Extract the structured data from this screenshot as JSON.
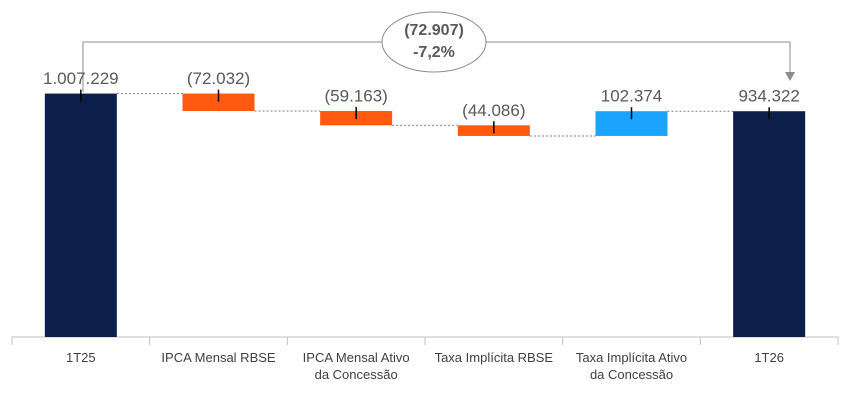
{
  "chart_data": {
    "type": "waterfall",
    "categories": [
      "1T25",
      "IPCA Mensal RBSE",
      "IPCA Mensal Ativo da Concessão",
      "Taxa Implícita RBSE",
      "Taxa Implícita Ativo da Concessão",
      "1T26"
    ],
    "values": [
      1007229,
      -72032,
      -59163,
      -44086,
      102374,
      934322
    ],
    "value_labels": [
      "1.007.229",
      "(72.032)",
      "(59.163)",
      "(44.086)",
      "102.374",
      "934.322"
    ],
    "is_total": [
      true,
      false,
      false,
      false,
      false,
      true
    ],
    "colors": {
      "total": "#0c1f4a",
      "decrease": "#ff5a0f",
      "increase": "#1aa3ff"
    },
    "ylim": [
      0,
      1200000
    ],
    "annotation": [
      "(72.907)",
      "-7,2%"
    ]
  }
}
